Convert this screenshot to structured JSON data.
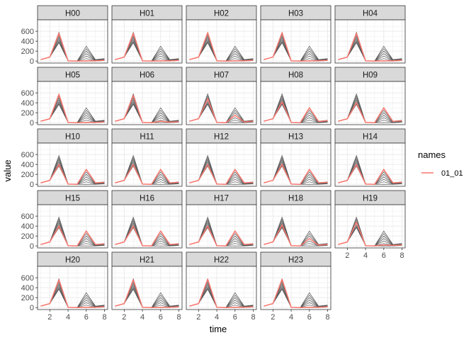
{
  "chart_data": {
    "type": "line",
    "facet_order": [
      "H00",
      "H01",
      "H02",
      "H03",
      "H04",
      "H05",
      "H06",
      "H07",
      "H08",
      "H09",
      "H10",
      "H11",
      "H12",
      "H13",
      "H14",
      "H15",
      "H16",
      "H17",
      "H18",
      "H19",
      "H20",
      "H21",
      "H22",
      "H23"
    ],
    "facet_columns": 5,
    "x": [
      1,
      2,
      3,
      4,
      5,
      6,
      7,
      8
    ],
    "xlabel": "time",
    "ylabel": "value",
    "x_ticks": [
      2,
      4,
      6,
      8
    ],
    "y_ticks": [
      0,
      200,
      400,
      600
    ],
    "xlim": [
      0.65,
      8.35
    ],
    "ylim": [
      -40,
      830
    ],
    "grid": true,
    "legend": {
      "title": "names",
      "position": "right",
      "entries": [
        {
          "name": "01_01",
          "color": "#F8766D"
        }
      ]
    },
    "colors": {
      "highlight": "#F8766D",
      "background_series": "#595959",
      "strip_fill": "#D9D9D9",
      "grid": "#EBEBEB"
    },
    "background_series": [
      [
        30,
        80,
        580,
        5,
        0,
        300,
        30,
        50
      ],
      [
        30,
        80,
        540,
        5,
        0,
        250,
        25,
        45
      ],
      [
        30,
        80,
        500,
        5,
        0,
        200,
        20,
        40
      ],
      [
        30,
        80,
        460,
        5,
        0,
        150,
        15,
        30
      ],
      [
        30,
        80,
        420,
        5,
        0,
        100,
        10,
        25
      ],
      [
        30,
        80,
        390,
        5,
        0,
        50,
        5,
        20
      ],
      [
        30,
        80,
        370,
        5,
        0,
        0,
        0,
        10
      ]
    ],
    "highlight_series": {
      "H00": [
        30,
        80,
        560,
        5,
        0,
        5,
        5,
        15
      ],
      "H01": [
        30,
        80,
        560,
        5,
        0,
        5,
        5,
        15
      ],
      "H02": [
        30,
        80,
        570,
        5,
        0,
        5,
        5,
        15
      ],
      "H03": [
        30,
        80,
        570,
        5,
        0,
        5,
        5,
        15
      ],
      "H04": [
        30,
        80,
        560,
        5,
        0,
        5,
        5,
        15
      ],
      "H05": [
        30,
        80,
        570,
        5,
        0,
        5,
        5,
        15
      ],
      "H06": [
        30,
        80,
        550,
        5,
        0,
        30,
        10,
        20
      ],
      "H07": [
        30,
        80,
        480,
        5,
        0,
        150,
        15,
        30
      ],
      "H08": [
        30,
        80,
        420,
        5,
        0,
        300,
        25,
        40
      ],
      "H09": [
        30,
        80,
        400,
        5,
        0,
        300,
        25,
        40
      ],
      "H10": [
        30,
        80,
        400,
        5,
        0,
        300,
        30,
        40
      ],
      "H11": [
        30,
        80,
        400,
        5,
        0,
        300,
        30,
        40
      ],
      "H12": [
        30,
        80,
        400,
        5,
        0,
        300,
        30,
        40
      ],
      "H13": [
        30,
        80,
        400,
        5,
        0,
        300,
        30,
        40
      ],
      "H14": [
        30,
        80,
        400,
        5,
        0,
        300,
        30,
        40
      ],
      "H15": [
        30,
        80,
        400,
        5,
        0,
        300,
        30,
        40
      ],
      "H16": [
        30,
        80,
        400,
        5,
        0,
        300,
        30,
        40
      ],
      "H17": [
        30,
        80,
        400,
        5,
        0,
        300,
        30,
        40
      ],
      "H18": [
        30,
        80,
        420,
        5,
        0,
        150,
        15,
        30
      ],
      "H19": [
        30,
        80,
        480,
        5,
        0,
        20,
        10,
        20
      ],
      "H20": [
        30,
        80,
        560,
        5,
        0,
        5,
        5,
        15
      ],
      "H21": [
        30,
        80,
        560,
        5,
        0,
        5,
        5,
        15
      ],
      "H22": [
        30,
        80,
        570,
        5,
        0,
        5,
        5,
        15
      ],
      "H23": [
        30,
        80,
        570,
        5,
        0,
        5,
        5,
        15
      ]
    }
  }
}
